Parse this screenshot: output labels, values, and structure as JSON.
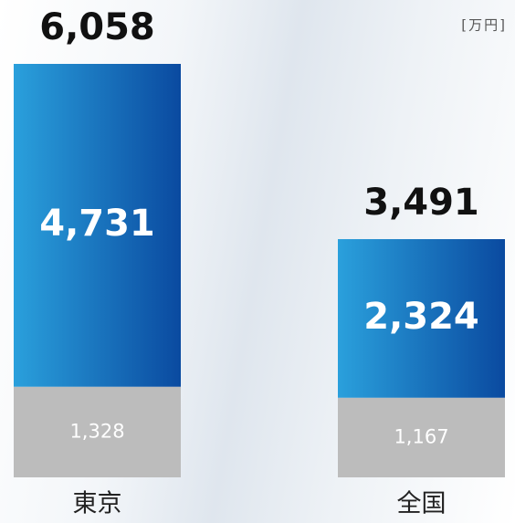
{
  "chart_data": {
    "type": "stacked_bar",
    "unit": "[万円]",
    "categories": [
      "東京",
      "全国"
    ],
    "series": [
      {
        "color": "#bcbcbc",
        "values": [
          1328,
          1167
        ],
        "value_labels": [
          "1,328",
          "1,167"
        ]
      },
      {
        "color": "#1570c0",
        "values": [
          4731,
          2324
        ],
        "value_labels": [
          "4,731",
          "2,324"
        ]
      }
    ],
    "totals": [
      6058,
      3491
    ],
    "total_labels": [
      "6,058",
      "3,491"
    ]
  }
}
